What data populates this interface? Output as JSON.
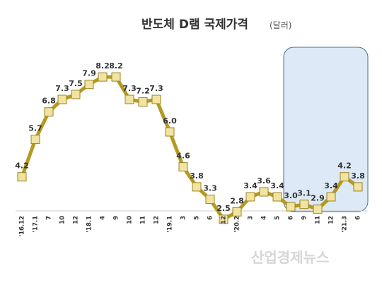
{
  "chart_data": {
    "type": "line",
    "title": "반도체 D램 국제가격",
    "subtitle": "(달러)",
    "categories": [
      "'16.12",
      "'17.1",
      "7",
      "10",
      "12",
      "'18.1",
      "4",
      "9",
      "10",
      "11",
      "12",
      "'19.1",
      "3",
      "5",
      "6",
      "12",
      "'20.2",
      "3",
      "4",
      "5",
      "6",
      "9",
      "11",
      "12",
      "'21.3",
      "6"
    ],
    "values": [
      4.2,
      5.7,
      6.8,
      7.3,
      7.5,
      7.9,
      8.2,
      8.2,
      7.3,
      7.2,
      7.3,
      6.0,
      4.6,
      3.8,
      3.3,
      2.5,
      2.8,
      3.4,
      3.6,
      3.4,
      3.0,
      3.1,
      2.9,
      3.4,
      4.2,
      3.8
    ],
    "data_labels": [
      "4.2",
      "5.7",
      "6.8",
      "7.3",
      "7.5",
      "7.9",
      "8.2",
      "8.2",
      "7.3",
      "7.2",
      "7.3",
      "6.0",
      "4.6",
      "3.8",
      "3.3",
      "2.5",
      "2.8",
      "3.4",
      "3.6",
      "3.4",
      "3.0",
      "3.1",
      "2.9",
      "3.4",
      "4.2",
      "3.8"
    ],
    "highlight_range": [
      "6",
      "6"
    ],
    "grid": false,
    "legend": "none",
    "colors": {
      "line": "#b59a22",
      "marker_fill": "#f1e3a2",
      "marker_stroke": "#9c8420",
      "highlight_fill": "#dde9f6",
      "highlight_stroke": "#4e6e92",
      "axis": "#cccccc"
    }
  },
  "watermark": "산업경제뉴스"
}
